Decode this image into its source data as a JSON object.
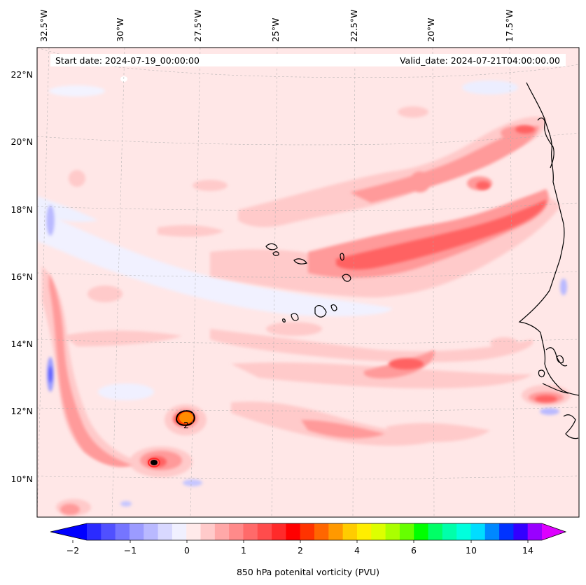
{
  "map": {
    "title_left": "Start date: 2024-07-19_00:00:00",
    "title_right": "Valid_date: 2024-07-21T04:00:00.00",
    "lon_labels": [
      "32.5°W",
      "30°W",
      "27.5°W",
      "25°W",
      "22.5°W",
      "20°W",
      "17.5°W"
    ],
    "lat_labels": [
      "22°N",
      "20°N",
      "18°N",
      "16°N",
      "14°N",
      "12°N",
      "10°N"
    ],
    "contour_label": "2",
    "colors": {
      "background_field": "#ffe7e7",
      "light_pink": "#ffcaca",
      "mid_red": "#ff7d7d",
      "strong_red": "#ff5252",
      "orange_core": "#ff8c00",
      "pale_blue": "#e9ebff",
      "blue": "#7d7dff"
    }
  },
  "colorbar": {
    "label": "850 hPa potenital vorticity (PVU)",
    "tick_labels": [
      "−2",
      "−1",
      "0",
      "1",
      "2",
      "4",
      "6",
      "10",
      "14"
    ],
    "tick_values": [
      -2,
      -1,
      0,
      1,
      2,
      4,
      6,
      10,
      14
    ],
    "colors": [
      "#0000ff",
      "#2b2bff",
      "#5050ff",
      "#7575ff",
      "#9b9bff",
      "#b9b9ff",
      "#d8d8ff",
      "#f0f0ff",
      "#ffeaea",
      "#ffcaca",
      "#ffa8a8",
      "#ff8a8a",
      "#ff6a6a",
      "#ff4c4c",
      "#ff2a2a",
      "#ff0000",
      "#ff3300",
      "#ff6600",
      "#ff9900",
      "#ffcc00",
      "#ffee00",
      "#ddff00",
      "#aaff00",
      "#66ff00",
      "#00ff00",
      "#00ff66",
      "#00ffaa",
      "#00ffdd",
      "#00ddff",
      "#0088ff",
      "#0033ff",
      "#3300ff",
      "#9900ff",
      "#dd00ff"
    ]
  }
}
